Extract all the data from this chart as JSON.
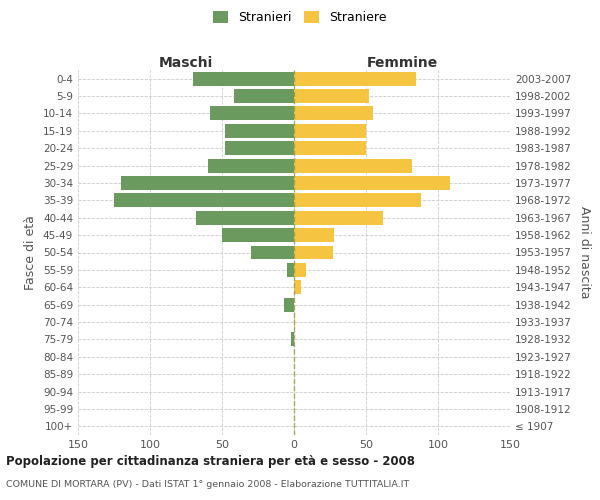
{
  "age_groups": [
    "100+",
    "95-99",
    "90-94",
    "85-89",
    "80-84",
    "75-79",
    "70-74",
    "65-69",
    "60-64",
    "55-59",
    "50-54",
    "45-49",
    "40-44",
    "35-39",
    "30-34",
    "25-29",
    "20-24",
    "15-19",
    "10-14",
    "5-9",
    "0-4"
  ],
  "birth_years": [
    "≤ 1907",
    "1908-1912",
    "1913-1917",
    "1918-1922",
    "1923-1927",
    "1928-1932",
    "1933-1937",
    "1938-1942",
    "1943-1947",
    "1948-1952",
    "1953-1957",
    "1958-1962",
    "1963-1967",
    "1968-1972",
    "1973-1977",
    "1978-1982",
    "1983-1987",
    "1988-1992",
    "1993-1997",
    "1998-2002",
    "2003-2007"
  ],
  "males": [
    0,
    0,
    0,
    0,
    0,
    2,
    0,
    7,
    0,
    5,
    30,
    50,
    68,
    125,
    120,
    60,
    48,
    48,
    58,
    42,
    70
  ],
  "females": [
    0,
    0,
    0,
    0,
    0,
    0,
    1,
    0,
    5,
    8,
    27,
    28,
    62,
    88,
    108,
    82,
    50,
    50,
    55,
    52,
    85
  ],
  "male_color": "#6a9a5e",
  "female_color": "#f5c542",
  "title_main": "Popolazione per cittadinanza straniera per età e sesso - 2008",
  "title_sub": "COMUNE DI MORTARA (PV) - Dati ISTAT 1° gennaio 2008 - Elaborazione TUTTITALIA.IT",
  "legend_male": "Stranieri",
  "legend_female": "Straniere",
  "xlabel_left": "Maschi",
  "xlabel_right": "Femmine",
  "ylabel_left": "Fasce di età",
  "ylabel_right": "Anni di nascita",
  "xlim": 150,
  "background_color": "#ffffff",
  "grid_color": "#cccccc"
}
